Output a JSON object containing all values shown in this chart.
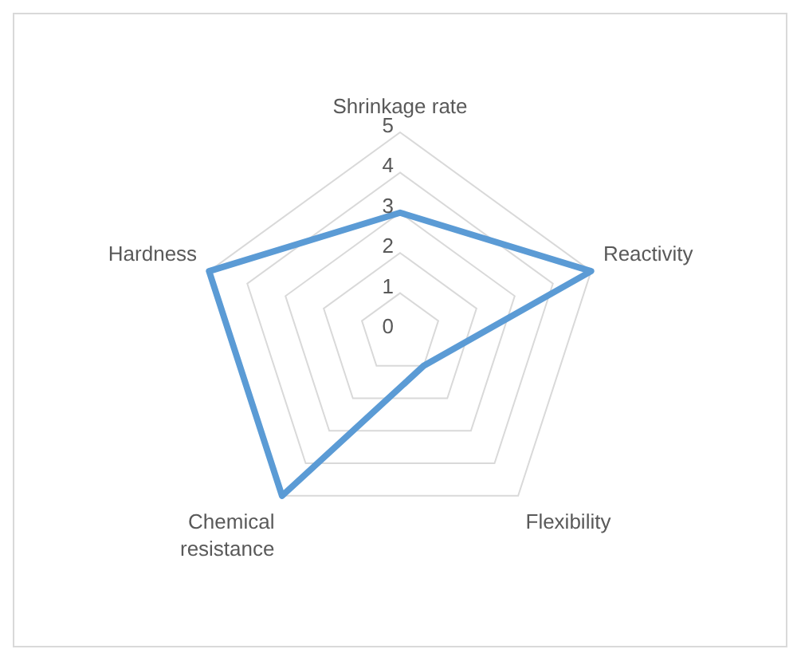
{
  "chart_data": {
    "type": "radar",
    "categories": [
      "Shrinkage rate",
      "Reactivity",
      "Flexibility",
      "Chemical resistance",
      "Hardness"
    ],
    "series": [
      {
        "color": "#5b9bd5",
        "values": [
          3,
          5,
          1,
          5,
          5
        ]
      }
    ],
    "ylim": [
      0,
      5
    ],
    "yticks": [
      0,
      1,
      2,
      3,
      4,
      5
    ],
    "grid": true,
    "legend": false,
    "marker": "none"
  }
}
